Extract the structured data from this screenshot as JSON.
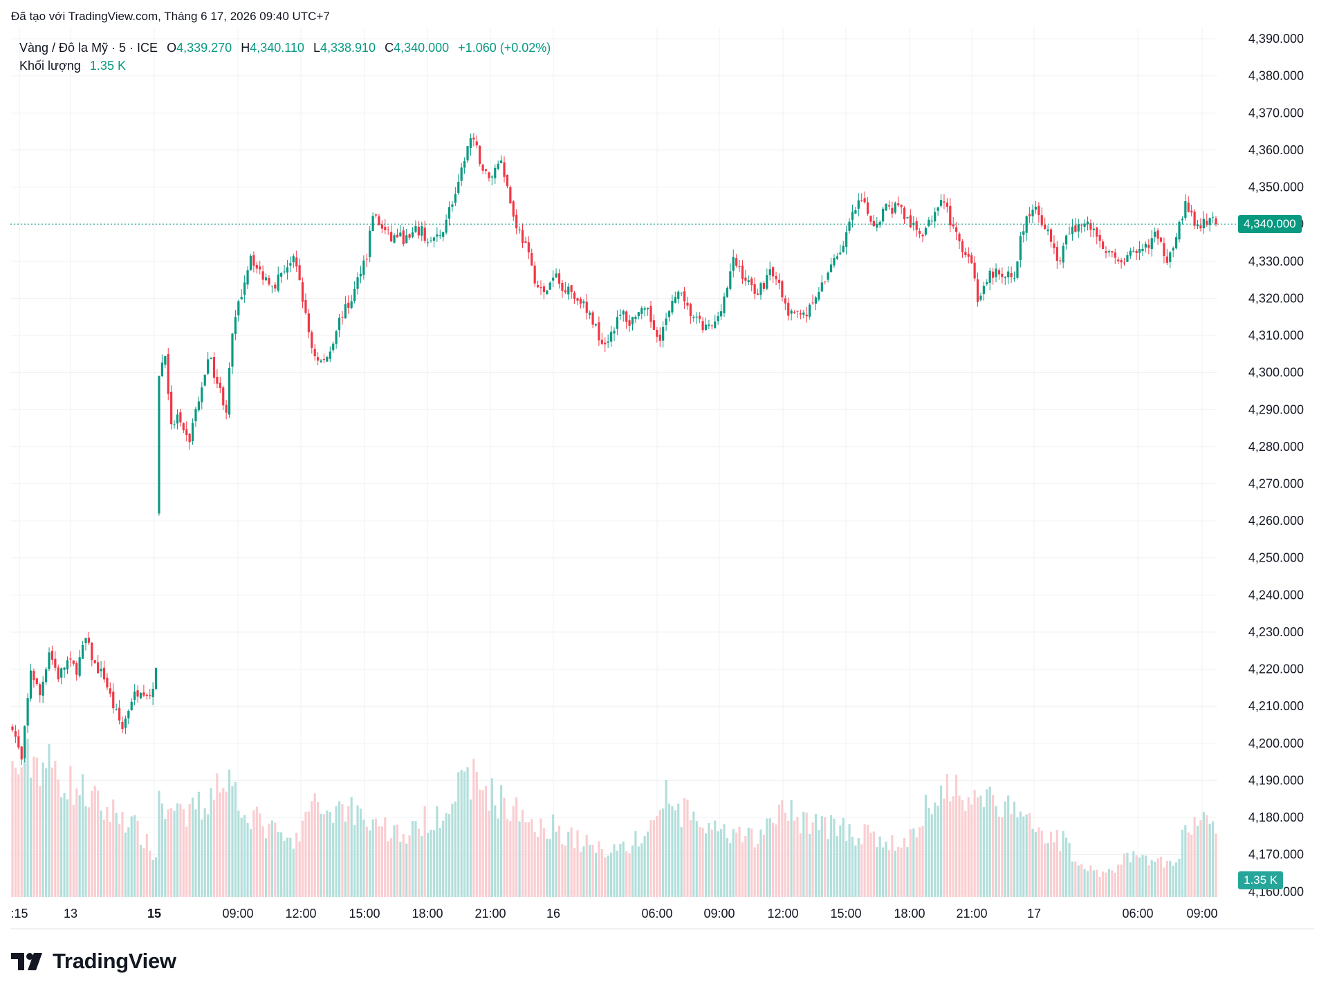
{
  "header_note": "Đã tạo với TradingView.com, Tháng 6 17, 2026 09:40 UTC+7",
  "legend": {
    "symbol": "Vàng / Đô la Mỹ · 5 · ICE",
    "open_label": "O",
    "open": "4,339.270",
    "high_label": "H",
    "high": "4,340.110",
    "low_label": "L",
    "low": "4,338.910",
    "close_label": "C",
    "close": "4,340.000",
    "change": "+1.060 (+0.02%)",
    "volume_label": "Khối lượng",
    "volume": "1.35 K"
  },
  "price_tag": "4,340.000",
  "volume_tag": "1.35 K",
  "brand": "TradingView",
  "colors": {
    "up": "#089981",
    "down": "#f23645",
    "up_vol": "#b2dfdb",
    "down_vol": "#facdd0",
    "grid": "#eef0f3",
    "price_line": "#089981"
  },
  "chart_data": {
    "type": "candlestick",
    "title": "Vàng / Đô la Mỹ · 5 · ICE",
    "y_ticks": [
      "4,390.000",
      "4,380.000",
      "4,370.000",
      "4,360.000",
      "4,350.000",
      "4,340.000",
      "4,330.000",
      "4,320.000",
      "4,310.000",
      "4,300.000",
      "4,290.000",
      "4,280.000",
      "4,270.000",
      "4,260.000",
      "4,250.000",
      "4,240.000",
      "4,230.000",
      "4,220.000",
      "4,210.000",
      "4,200.000",
      "4,190.000",
      "4,180.000",
      "4,170.000",
      "4,160.000"
    ],
    "ylim": [
      4158,
      4393
    ],
    "x_ticks": [
      {
        "label": ":15",
        "bold": false
      },
      {
        "label": "13",
        "bold": false
      },
      {
        "label": "15",
        "bold": true
      },
      {
        "label": "09:00",
        "bold": false
      },
      {
        "label": "12:00",
        "bold": false
      },
      {
        "label": "15:00",
        "bold": false
      },
      {
        "label": "18:00",
        "bold": false
      },
      {
        "label": "21:00",
        "bold": false
      },
      {
        "label": "16",
        "bold": false
      },
      {
        "label": "06:00",
        "bold": false
      },
      {
        "label": "09:00",
        "bold": false
      },
      {
        "label": "12:00",
        "bold": false
      },
      {
        "label": "15:00",
        "bold": false
      },
      {
        "label": "18:00",
        "bold": false
      },
      {
        "label": "21:00",
        "bold": false
      },
      {
        "label": "17",
        "bold": false
      },
      {
        "label": "06:00",
        "bold": false
      },
      {
        "label": "09:00",
        "bold": false
      }
    ],
    "last_price": 4340.0,
    "close_path": [
      [
        0,
        4205
      ],
      [
        3,
        4195
      ],
      [
        6,
        4220
      ],
      [
        9,
        4213
      ],
      [
        12,
        4225
      ],
      [
        15,
        4218
      ],
      [
        18,
        4222
      ],
      [
        21,
        4220
      ],
      [
        24,
        4228
      ],
      [
        27,
        4221
      ],
      [
        30,
        4218
      ],
      [
        33,
        4210
      ],
      [
        36,
        4204
      ],
      [
        39,
        4212
      ],
      [
        42,
        4215
      ],
      [
        45,
        4213
      ],
      [
        47,
        4219
      ],
      [
        48,
        4300
      ],
      [
        50,
        4305
      ],
      [
        52,
        4285
      ],
      [
        54,
        4288
      ],
      [
        56,
        4283
      ],
      [
        58,
        4282
      ],
      [
        60,
        4290
      ],
      [
        62,
        4295
      ],
      [
        64,
        4305
      ],
      [
        66,
        4300
      ],
      [
        68,
        4295
      ],
      [
        70,
        4290
      ],
      [
        72,
        4310
      ],
      [
        74,
        4318
      ],
      [
        76,
        4325
      ],
      [
        78,
        4332
      ],
      [
        80,
        4328
      ],
      [
        82,
        4326
      ],
      [
        84,
        4325
      ],
      [
        86,
        4324
      ],
      [
        88,
        4327
      ],
      [
        90,
        4329
      ],
      [
        92,
        4330
      ],
      [
        94,
        4325
      ],
      [
        96,
        4315
      ],
      [
        98,
        4307
      ],
      [
        100,
        4303
      ],
      [
        102,
        4303
      ],
      [
        104,
        4306
      ],
      [
        106,
        4312
      ],
      [
        108,
        4316
      ],
      [
        110,
        4318
      ],
      [
        112,
        4322
      ],
      [
        114,
        4328
      ],
      [
        116,
        4332
      ],
      [
        118,
        4343
      ],
      [
        120,
        4340
      ],
      [
        122,
        4338
      ],
      [
        124,
        4336
      ],
      [
        126,
        4337
      ],
      [
        128,
        4336
      ],
      [
        130,
        4336
      ],
      [
        132,
        4338
      ],
      [
        134,
        4338
      ],
      [
        136,
        4335
      ],
      [
        138,
        4336
      ],
      [
        140,
        4336
      ],
      [
        142,
        4342
      ],
      [
        144,
        4346
      ],
      [
        146,
        4350
      ],
      [
        148,
        4358
      ],
      [
        150,
        4363
      ],
      [
        152,
        4360
      ],
      [
        154,
        4355
      ],
      [
        156,
        4352
      ],
      [
        158,
        4355
      ],
      [
        160,
        4358
      ],
      [
        162,
        4350
      ],
      [
        164,
        4342
      ],
      [
        166,
        4338
      ],
      [
        168,
        4334
      ],
      [
        170,
        4328
      ],
      [
        172,
        4323
      ],
      [
        174,
        4321
      ],
      [
        176,
        4324
      ],
      [
        178,
        4326
      ],
      [
        180,
        4322
      ],
      [
        182,
        4324
      ],
      [
        184,
        4320
      ],
      [
        186,
        4320
      ],
      [
        188,
        4316
      ],
      [
        190,
        4314
      ],
      [
        192,
        4310
      ],
      [
        194,
        4308
      ],
      [
        196,
        4311
      ],
      [
        198,
        4314
      ],
      [
        200,
        4316
      ],
      [
        202,
        4313
      ],
      [
        204,
        4316
      ],
      [
        206,
        4316
      ],
      [
        208,
        4316
      ],
      [
        210,
        4312
      ],
      [
        212,
        4310
      ],
      [
        214,
        4314
      ],
      [
        216,
        4318
      ],
      [
        218,
        4323
      ],
      [
        220,
        4318
      ],
      [
        222,
        4316
      ],
      [
        224,
        4314
      ],
      [
        226,
        4312
      ],
      [
        228,
        4312
      ],
      [
        230,
        4313
      ],
      [
        232,
        4318
      ],
      [
        234,
        4323
      ],
      [
        236,
        4330
      ],
      [
        238,
        4328
      ],
      [
        240,
        4325
      ],
      [
        242,
        4323
      ],
      [
        244,
        4322
      ],
      [
        246,
        4324
      ],
      [
        248,
        4328
      ],
      [
        250,
        4326
      ],
      [
        252,
        4320
      ],
      [
        254,
        4316
      ],
      [
        256,
        4315
      ],
      [
        258,
        4317
      ],
      [
        260,
        4316
      ],
      [
        262,
        4318
      ],
      [
        264,
        4322
      ],
      [
        266,
        4324
      ],
      [
        268,
        4330
      ],
      [
        270,
        4332
      ],
      [
        272,
        4334
      ],
      [
        274,
        4340
      ],
      [
        276,
        4344
      ],
      [
        278,
        4346
      ],
      [
        280,
        4343
      ],
      [
        282,
        4340
      ],
      [
        284,
        4342
      ],
      [
        286,
        4345
      ],
      [
        288,
        4344
      ],
      [
        290,
        4346
      ],
      [
        292,
        4342
      ],
      [
        294,
        4340
      ],
      [
        296,
        4338
      ],
      [
        298,
        4338
      ],
      [
        300,
        4340
      ],
      [
        302,
        4344
      ],
      [
        304,
        4348
      ],
      [
        306,
        4344
      ],
      [
        308,
        4338
      ],
      [
        310,
        4335
      ],
      [
        312,
        4333
      ],
      [
        314,
        4330
      ],
      [
        316,
        4320
      ],
      [
        318,
        4322
      ],
      [
        320,
        4326
      ],
      [
        322,
        4327
      ],
      [
        324,
        4325
      ],
      [
        326,
        4326
      ],
      [
        328,
        4326
      ],
      [
        330,
        4336
      ],
      [
        332,
        4341
      ],
      [
        334,
        4345
      ],
      [
        336,
        4342
      ],
      [
        338,
        4340
      ],
      [
        340,
        4335
      ],
      [
        342,
        4330
      ],
      [
        344,
        4333
      ],
      [
        346,
        4338
      ],
      [
        348,
        4339
      ],
      [
        350,
        4340
      ],
      [
        352,
        4340
      ],
      [
        354,
        4338
      ],
      [
        356,
        4336
      ],
      [
        358,
        4333
      ],
      [
        360,
        4331
      ],
      [
        362,
        4331
      ],
      [
        364,
        4330
      ],
      [
        366,
        4332
      ],
      [
        368,
        4331
      ],
      [
        370,
        4333
      ],
      [
        372,
        4335
      ],
      [
        374,
        4337
      ],
      [
        376,
        4334
      ],
      [
        378,
        4331
      ],
      [
        380,
        4335
      ],
      [
        382,
        4340
      ],
      [
        384,
        4345
      ],
      [
        386,
        4342
      ],
      [
        388,
        4339
      ],
      [
        390,
        4340
      ],
      [
        392,
        4341
      ],
      [
        394,
        4340
      ]
    ],
    "volume_path": [
      [
        0,
        180
      ],
      [
        6,
        200
      ],
      [
        12,
        190
      ],
      [
        18,
        165
      ],
      [
        24,
        150
      ],
      [
        30,
        125
      ],
      [
        36,
        120
      ],
      [
        42,
        90
      ],
      [
        47,
        55
      ],
      [
        48,
        145
      ],
      [
        52,
        125
      ],
      [
        56,
        110
      ],
      [
        60,
        130
      ],
      [
        64,
        135
      ],
      [
        66,
        165
      ],
      [
        68,
        180
      ],
      [
        72,
        160
      ],
      [
        76,
        130
      ],
      [
        80,
        110
      ],
      [
        84,
        100
      ],
      [
        88,
        85
      ],
      [
        92,
        75
      ],
      [
        94,
        90
      ],
      [
        96,
        120
      ],
      [
        100,
        130
      ],
      [
        104,
        125
      ],
      [
        108,
        130
      ],
      [
        112,
        128
      ],
      [
        116,
        110
      ],
      [
        120,
        108
      ],
      [
        124,
        95
      ],
      [
        128,
        90
      ],
      [
        132,
        95
      ],
      [
        136,
        115
      ],
      [
        140,
        125
      ],
      [
        142,
        135
      ],
      [
        144,
        140
      ],
      [
        148,
        165
      ],
      [
        150,
        175
      ],
      [
        154,
        160
      ],
      [
        158,
        145
      ],
      [
        162,
        130
      ],
      [
        166,
        120
      ],
      [
        170,
        110
      ],
      [
        174,
        105
      ],
      [
        178,
        100
      ],
      [
        182,
        90
      ],
      [
        186,
        80
      ],
      [
        190,
        72
      ],
      [
        194,
        70
      ],
      [
        198,
        72
      ],
      [
        202,
        75
      ],
      [
        206,
        85
      ],
      [
        210,
        110
      ],
      [
        212,
        125
      ],
      [
        214,
        150
      ],
      [
        216,
        130
      ],
      [
        220,
        120
      ],
      [
        224,
        110
      ],
      [
        228,
        100
      ],
      [
        232,
        90
      ],
      [
        236,
        85
      ],
      [
        240,
        85
      ],
      [
        244,
        90
      ],
      [
        248,
        100
      ],
      [
        250,
        125
      ],
      [
        254,
        120
      ],
      [
        258,
        115
      ],
      [
        262,
        110
      ],
      [
        266,
        105
      ],
      [
        270,
        100
      ],
      [
        274,
        95
      ],
      [
        278,
        90
      ],
      [
        282,
        85
      ],
      [
        286,
        78
      ],
      [
        290,
        75
      ],
      [
        294,
        85
      ],
      [
        296,
        100
      ],
      [
        298,
        120
      ],
      [
        300,
        130
      ],
      [
        304,
        150
      ],
      [
        306,
        160
      ],
      [
        310,
        155
      ],
      [
        314,
        150
      ],
      [
        318,
        145
      ],
      [
        322,
        140
      ],
      [
        324,
        130
      ],
      [
        328,
        120
      ],
      [
        332,
        110
      ],
      [
        336,
        100
      ],
      [
        338,
        95
      ],
      [
        340,
        90
      ],
      [
        344,
        80
      ],
      [
        346,
        70
      ],
      [
        348,
        55
      ],
      [
        350,
        50
      ],
      [
        352,
        45
      ],
      [
        354,
        40
      ],
      [
        356,
        35
      ],
      [
        358,
        30
      ],
      [
        360,
        40
      ],
      [
        364,
        55
      ],
      [
        368,
        60
      ],
      [
        372,
        55
      ],
      [
        376,
        50
      ],
      [
        380,
        45
      ],
      [
        382,
        55
      ],
      [
        384,
        110
      ],
      [
        388,
        110
      ],
      [
        392,
        100
      ],
      [
        394,
        95
      ]
    ]
  }
}
